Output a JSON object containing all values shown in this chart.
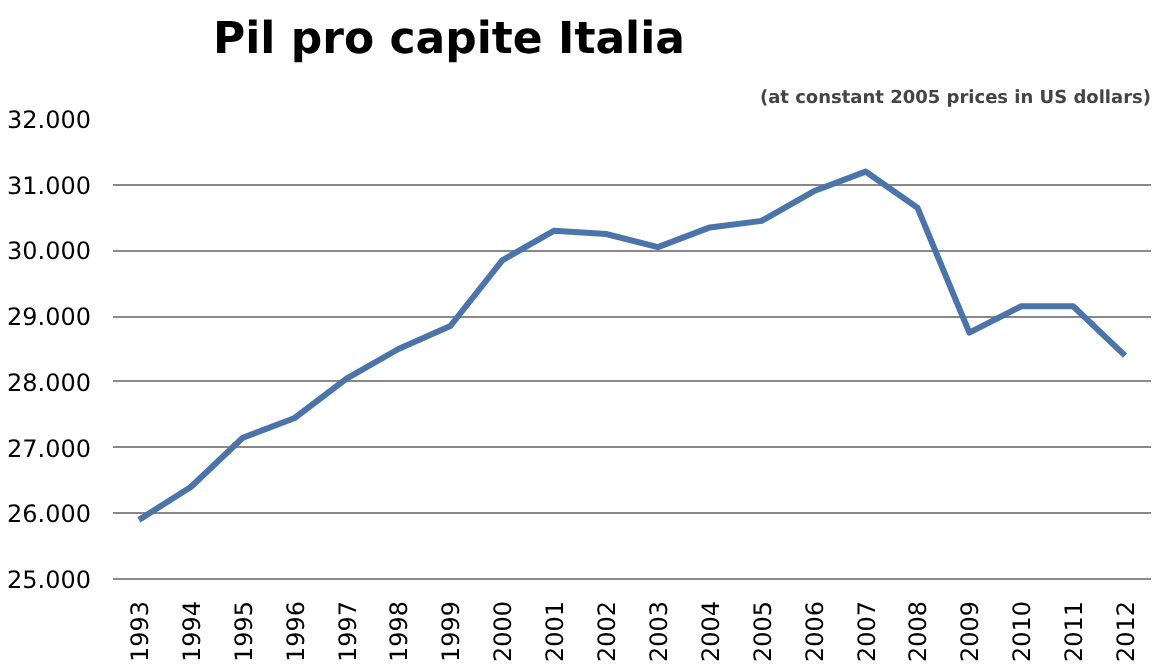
{
  "chart_data": {
    "type": "line",
    "title": "Pil pro capite Italia",
    "subtitle": "(at constant 2005 prices in US dollars)",
    "categories": [
      "1993",
      "1994",
      "1995",
      "1996",
      "1997",
      "1998",
      "1999",
      "2000",
      "2001",
      "2002",
      "2003",
      "2004",
      "2005",
      "2006",
      "2007",
      "2008",
      "2009",
      "2010",
      "2011",
      "2012"
    ],
    "series": [
      {
        "color": "#4a74aa",
        "values": [
          25900,
          26400,
          27150,
          27450,
          28050,
          28500,
          28850,
          29850,
          30300,
          30250,
          30050,
          30350,
          30450,
          30900,
          31200,
          30650,
          28750,
          29150,
          29150,
          28400
        ]
      }
    ],
    "ylim": [
      25000,
      32000
    ],
    "yticks": [
      {
        "value": 25000,
        "label": "25.000"
      },
      {
        "value": 26000,
        "label": "26.000"
      },
      {
        "value": 27000,
        "label": "27.000"
      },
      {
        "value": 28000,
        "label": "28.000"
      },
      {
        "value": 29000,
        "label": "29.000"
      },
      {
        "value": 30000,
        "label": "30.000"
      },
      {
        "value": 31000,
        "label": "31.000"
      },
      {
        "value": 32000,
        "label": "32.000"
      }
    ],
    "grid": "y",
    "marker": "none",
    "line_style": "solid"
  }
}
